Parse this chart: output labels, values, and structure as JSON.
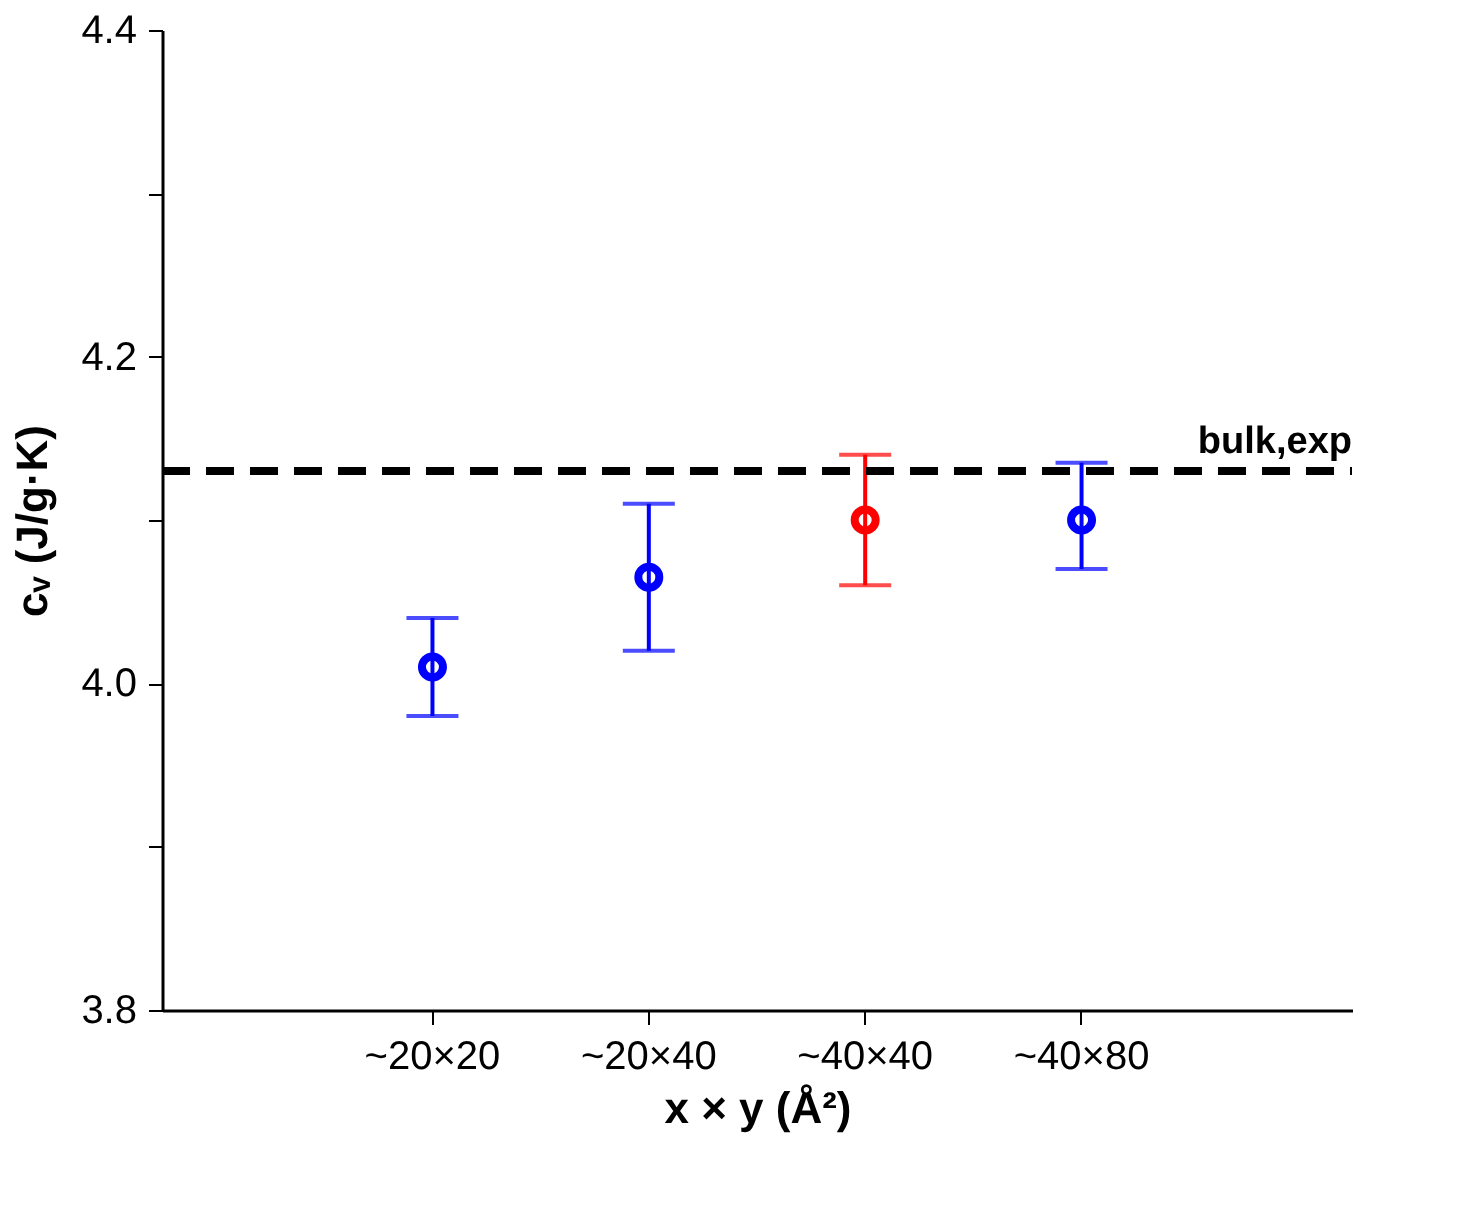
{
  "chart_data": {
    "type": "scatter",
    "categories": [
      "~20×20",
      "~20×40",
      "~40×40",
      "~40×80"
    ],
    "values": [
      4.01,
      4.065,
      4.1,
      4.1
    ],
    "colors": [
      "#0000ff",
      "#0000ff",
      "#ff0000",
      "#0000ff"
    ],
    "errors": [
      [
        3.98,
        4.04
      ],
      [
        4.02,
        4.11
      ],
      [
        4.06,
        4.14
      ],
      [
        4.07,
        4.135
      ]
    ],
    "xlabel": "x × y (Å²)",
    "ylabel": "cᵥ (J/g·K)",
    "ylim": [
      3.8,
      4.4
    ],
    "yticks": [
      3.8,
      {
        "value": 3.9,
        "label": null
      },
      {
        "value": 4.0,
        "label": "4.0"
      },
      {
        "value": 4.1,
        "label": null
      },
      4.2,
      {
        "value": 4.3,
        "label": null
      },
      4.4
    ],
    "ref_lines": [
      {
        "axis": "y",
        "value": 4.13,
        "label": "bulk,exp",
        "color": "#000000",
        "line_style": "dashed"
      }
    ],
    "marker": "circle",
    "grid": false
  }
}
